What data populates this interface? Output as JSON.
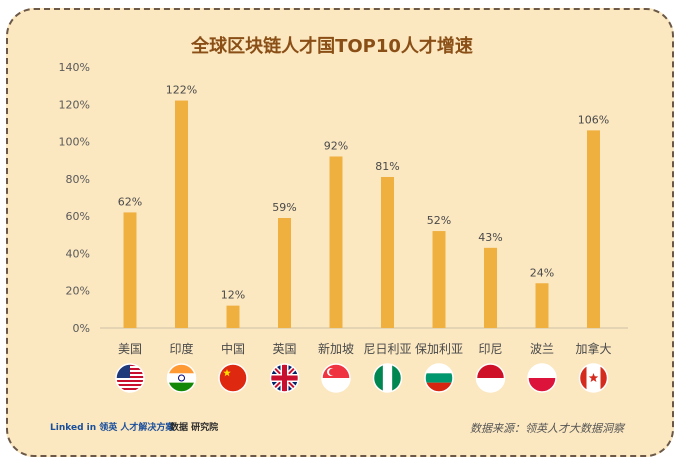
{
  "footer": {
    "linkedin_text": "Linked in 领英 人才解决方案",
    "shuju_text": "数据 研究院",
    "source_text": "数据来源：领英人才大数据洞察"
  },
  "chart_data": {
    "type": "bar",
    "title": "全球区块链人才国TOP10人才增速",
    "categories": [
      "美国",
      "印度",
      "中国",
      "英国",
      "新加坡",
      "尼日利亚",
      "保加利亚",
      "印尼",
      "波兰",
      "加拿大"
    ],
    "values": [
      62,
      122,
      12,
      59,
      92,
      81,
      52,
      43,
      24,
      106
    ],
    "value_labels": [
      "62%",
      "122%",
      "12%",
      "59%",
      "92%",
      "81%",
      "52%",
      "43%",
      "24%",
      "106%"
    ],
    "y_ticks": [
      "0%",
      "20%",
      "40%",
      "60%",
      "80%",
      "100%",
      "120%",
      "140%"
    ],
    "ylim": [
      0,
      140
    ],
    "xlabel": "",
    "ylabel": "",
    "grid": false,
    "bar_color": "#f0b040",
    "flag_icons": [
      "us-flag-icon",
      "india-flag-icon",
      "china-flag-icon",
      "uk-flag-icon",
      "singapore-flag-icon",
      "nigeria-flag-icon",
      "bulgaria-flag-icon",
      "indonesia-flag-icon",
      "poland-flag-icon",
      "canada-flag-icon"
    ]
  }
}
